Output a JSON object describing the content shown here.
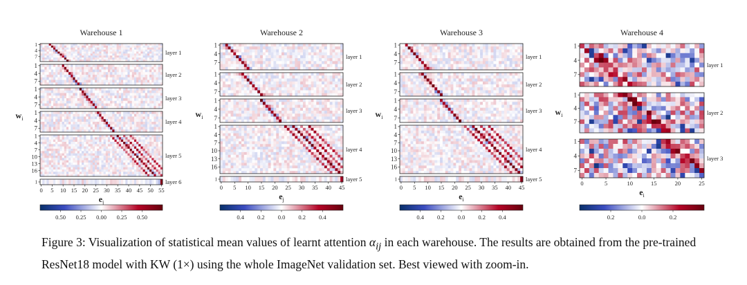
{
  "colors": {
    "neg": "#08306b",
    "mid": "#ffffff",
    "pos": "#67000d"
  },
  "caption": {
    "part1": "Figure 3: Visualization of statistical mean values of learnt attention ",
    "symbol": "α",
    "subscript": "ij",
    "part2": " in each warehouse. The results are obtained from the pre-trained ResNet18 model with KW (1×) using the whole ImageNet validation set. Best viewed with zoom-in."
  },
  "chart_data": [
    {
      "type": "heatmap",
      "title": "Warehouse 1",
      "xlabel": "e_j",
      "ylabel": "w_i",
      "n_cols": 56,
      "xticks": [
        0,
        5,
        10,
        15,
        20,
        25,
        30,
        35,
        40,
        45,
        50,
        55
      ],
      "panels": [
        {
          "label": "layer 1",
          "rows": 9,
          "yticks": [
            1,
            4,
            7
          ],
          "diag_start": 4
        },
        {
          "label": "layer 2",
          "rows": 8,
          "yticks": [
            1,
            4,
            7
          ],
          "diag_start": 10
        },
        {
          "label": "layer 3",
          "rows": 8,
          "yticks": [
            1,
            4,
            7
          ],
          "diag_start": 18
        },
        {
          "label": "layer 4",
          "rows": 8,
          "yticks": [
            1,
            4,
            7
          ],
          "diag_start": 26
        },
        {
          "label": "layer 5",
          "rows": 18,
          "yticks": [
            1,
            4,
            7,
            10,
            13,
            16
          ],
          "diag_start": 35
        },
        {
          "label": "layer 6",
          "rows": 1,
          "yticks": [
            1
          ],
          "diag_start": 55
        }
      ],
      "colorbar": {
        "ticks": [
          "0.50",
          "0.25",
          "0.00",
          "0.25",
          "0.50"
        ],
        "range": [
          -0.75,
          0.75
        ]
      }
    },
    {
      "type": "heatmap",
      "title": "Warehouse 2",
      "xlabel": "e_j",
      "ylabel": "w_i",
      "n_cols": 46,
      "xticks": [
        0,
        5,
        10,
        15,
        20,
        25,
        30,
        35,
        40,
        45
      ],
      "panels": [
        {
          "label": "layer 1",
          "rows": 9,
          "yticks": [
            1,
            4,
            7
          ],
          "diag_start": 2
        },
        {
          "label": "layer 2",
          "rows": 8,
          "yticks": [
            1,
            4,
            7
          ],
          "diag_start": 8
        },
        {
          "label": "layer 3",
          "rows": 8,
          "yticks": [
            1,
            4,
            7
          ],
          "diag_start": 15
        },
        {
          "label": "layer 4",
          "rows": 18,
          "yticks": [
            1,
            4,
            7,
            10,
            13,
            16
          ],
          "diag_start": 27
        },
        {
          "label": "layer 5",
          "rows": 1,
          "yticks": [
            1
          ],
          "diag_start": 45
        }
      ],
      "colorbar": {
        "ticks": [
          "0.4",
          "0.2",
          "0.0",
          "0.2",
          "0.4"
        ],
        "range": [
          -0.5,
          0.5
        ]
      }
    },
    {
      "type": "heatmap",
      "title": "Warehouse 3",
      "xlabel": "e_i",
      "ylabel": "w_i",
      "n_cols": 46,
      "xticks": [
        0,
        5,
        10,
        15,
        20,
        25,
        30,
        35,
        40,
        45
      ],
      "panels": [
        {
          "label": "layer 1",
          "rows": 9,
          "yticks": [
            1,
            4,
            7
          ],
          "diag_start": 2
        },
        {
          "label": "layer 2",
          "rows": 8,
          "yticks": [
            1,
            4,
            7
          ],
          "diag_start": 8
        },
        {
          "label": "layer 3",
          "rows": 8,
          "yticks": [
            1,
            4,
            7
          ],
          "diag_start": 15
        },
        {
          "label": "layer 4",
          "rows": 18,
          "yticks": [
            1,
            4,
            7,
            10,
            13,
            16
          ],
          "diag_start": 27
        },
        {
          "label": "layer 5",
          "rows": 1,
          "yticks": [
            1
          ],
          "diag_start": 45
        }
      ],
      "colorbar": {
        "ticks": [
          "0.4",
          "0.2",
          "0.0",
          "0.2",
          "0.4"
        ],
        "range": [
          -0.45,
          0.45
        ]
      }
    },
    {
      "type": "heatmap",
      "title": "Warehouse 4",
      "xlabel": "e_i",
      "ylabel": "w_i",
      "n_cols": 26,
      "xticks": [
        0,
        5,
        10,
        15,
        20,
        25
      ],
      "panels": [
        {
          "label": "layer 1",
          "rows": 9,
          "yticks": [
            1,
            4,
            7
          ],
          "diag_start": 1
        },
        {
          "label": "layer 2",
          "rows": 9,
          "yticks": [
            1,
            4,
            7
          ],
          "diag_start": 9
        },
        {
          "label": "layer 3",
          "rows": 8,
          "yticks": [
            1,
            4,
            7
          ],
          "diag_start": 18
        }
      ],
      "colorbar": {
        "ticks": [
          "0.2",
          "0.0",
          "0.2"
        ],
        "range": [
          -0.35,
          0.35
        ]
      }
    }
  ]
}
